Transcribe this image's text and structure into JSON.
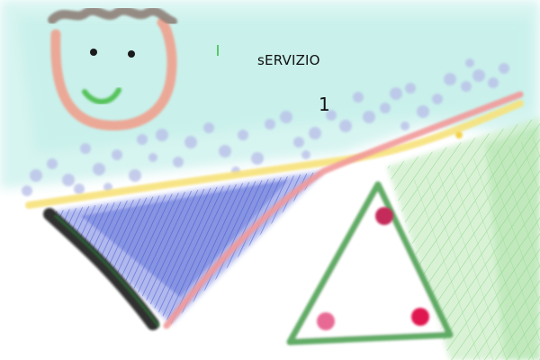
{
  "sketch": {
    "title_text": "sERVIZIO",
    "number_text": "1",
    "colors": {
      "sky": "#b9ede6",
      "dots": "#b7bce6",
      "face_outline": "#f0a18e",
      "hair": "#8a7a72",
      "eyes": "#1a1a1a",
      "smile": "#55c25a",
      "yellow_line": "#f7e27a",
      "pink_line": "#f29a9a",
      "blue_fill": "#4a5fd6",
      "black_edge": "#111111",
      "green_grass": "#8fd88a",
      "triangle_outline": "#5aa85e",
      "dot_crimson": "#c42a5a",
      "dot_red": "#e0194f",
      "dot_pink": "#e86a94"
    },
    "icons": [
      "smiley-face",
      "hair-scribble",
      "stroke-mark"
    ]
  }
}
